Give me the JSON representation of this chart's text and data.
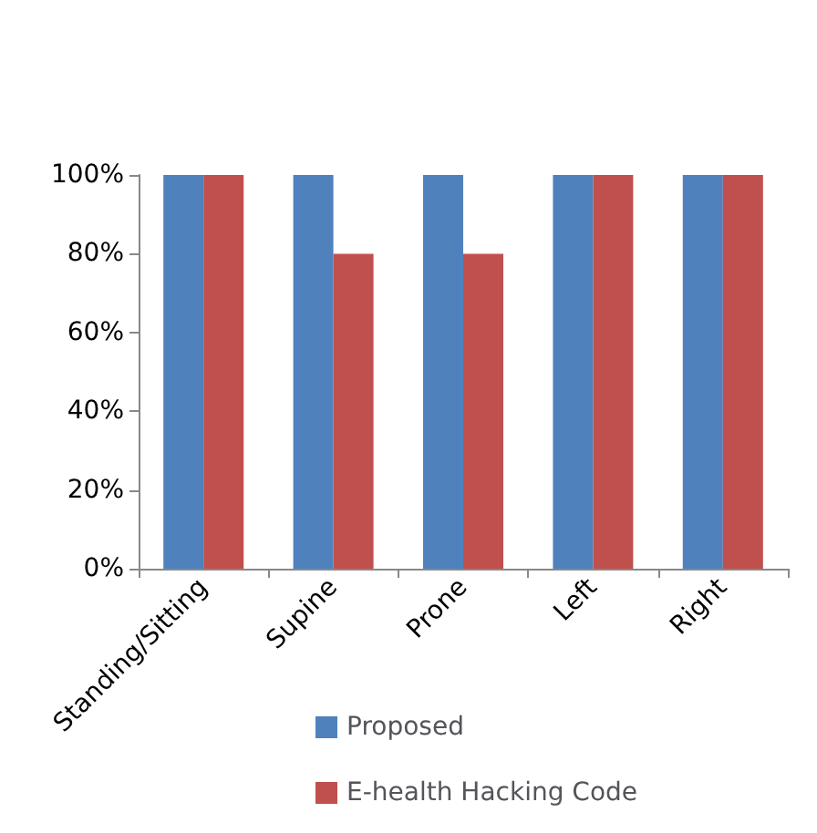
{
  "chart_data": {
    "type": "bar",
    "categories": [
      "Standing/Sitting",
      "Supine",
      "Prone",
      "Left",
      "Right"
    ],
    "series": [
      {
        "name": "Proposed",
        "color": "#4f81bd",
        "values": [
          100,
          100,
          100,
          100,
          100
        ]
      },
      {
        "name": "E-health Hacking Code",
        "color": "#c0504d",
        "values": [
          100,
          80,
          80,
          100,
          100
        ]
      }
    ],
    "ylim": [
      0,
      100
    ],
    "yticks": [
      {
        "value": 0,
        "label": "0%"
      },
      {
        "value": 20,
        "label": "20%"
      },
      {
        "value": 40,
        "label": "40%"
      },
      {
        "value": 60,
        "label": "60%"
      },
      {
        "value": 80,
        "label": "80%"
      },
      {
        "value": 100,
        "label": "100%"
      }
    ],
    "grid": false,
    "legend": "bottom"
  }
}
